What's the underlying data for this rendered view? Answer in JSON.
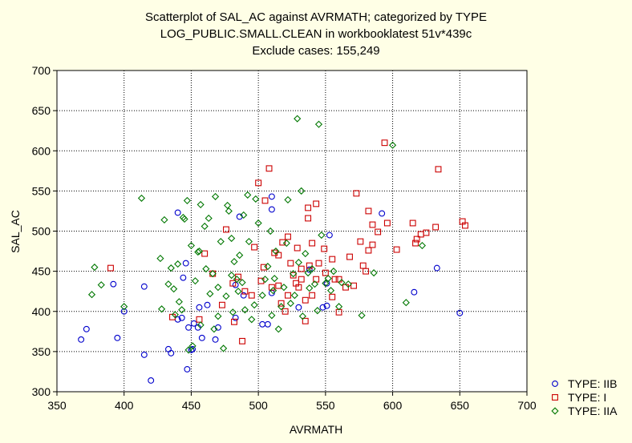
{
  "chart_data": {
    "type": "scatter",
    "title": [
      "Scatterplot of SAL_AC against AVRMATH; categorized by TYPE",
      "LOG_PUBLIC.SMALL.CLEAN in workbooklatest 51v*439c",
      "Exclude cases: 155,249"
    ],
    "xlabel": "AVRMATH",
    "ylabel": "SAL_AC",
    "xlim": [
      350,
      700
    ],
    "ylim": [
      300,
      700
    ],
    "xticks": [
      "350",
      "400",
      "450",
      "500",
      "550",
      "600",
      "650",
      "700"
    ],
    "yticks": [
      "300",
      "350",
      "400",
      "450",
      "500",
      "550",
      "600",
      "650",
      "700"
    ],
    "grid": true,
    "legend_position": "bottom-right",
    "series": [
      {
        "name": "TYPE: IIB",
        "marker": "circle",
        "color": "#0000cc",
        "points": [
          [
            368,
            365
          ],
          [
            372,
            378
          ],
          [
            392,
            434
          ],
          [
            395,
            367
          ],
          [
            400,
            400
          ],
          [
            415,
            431
          ],
          [
            415,
            346
          ],
          [
            420,
            314
          ],
          [
            433,
            353
          ],
          [
            435,
            348
          ],
          [
            440,
            390
          ],
          [
            440,
            523
          ],
          [
            443,
            392
          ],
          [
            444,
            442
          ],
          [
            446,
            460
          ],
          [
            447,
            328
          ],
          [
            448,
            380
          ],
          [
            450,
            352
          ],
          [
            451,
            353
          ],
          [
            452,
            385
          ],
          [
            455,
            380
          ],
          [
            456,
            405
          ],
          [
            458,
            367
          ],
          [
            462,
            408
          ],
          [
            468,
            365
          ],
          [
            470,
            380
          ],
          [
            483,
            392
          ],
          [
            483,
            433
          ],
          [
            486,
            518
          ],
          [
            489,
            420
          ],
          [
            503,
            384
          ],
          [
            507,
            384
          ],
          [
            510,
            543
          ],
          [
            510,
            527
          ],
          [
            510,
            423
          ],
          [
            530,
            405
          ],
          [
            538,
            452
          ],
          [
            548,
            405
          ],
          [
            551,
            407
          ],
          [
            551,
            435
          ],
          [
            553,
            495
          ],
          [
            592,
            522
          ],
          [
            616,
            424
          ],
          [
            633,
            454
          ],
          [
            650,
            398
          ]
        ]
      },
      {
        "name": "TYPE: I",
        "marker": "square",
        "color": "#cc0000",
        "points": [
          [
            390,
            454
          ],
          [
            436,
            393
          ],
          [
            456,
            390
          ],
          [
            460,
            472
          ],
          [
            466,
            447
          ],
          [
            473,
            408
          ],
          [
            476,
            502
          ],
          [
            481,
            435
          ],
          [
            482,
            387
          ],
          [
            485,
            443
          ],
          [
            488,
            363
          ],
          [
            490,
            425
          ],
          [
            495,
            420
          ],
          [
            497,
            480
          ],
          [
            500,
            560
          ],
          [
            502,
            438
          ],
          [
            504,
            455
          ],
          [
            505,
            538
          ],
          [
            508,
            578
          ],
          [
            510,
            430
          ],
          [
            512,
            473
          ],
          [
            515,
            470
          ],
          [
            515,
            432
          ],
          [
            517,
            410
          ],
          [
            518,
            486
          ],
          [
            520,
            400
          ],
          [
            522,
            420
          ],
          [
            522,
            493
          ],
          [
            524,
            460
          ],
          [
            526,
            445
          ],
          [
            528,
            435
          ],
          [
            529,
            479
          ],
          [
            530,
            430
          ],
          [
            532,
            440
          ],
          [
            532,
            453
          ],
          [
            535,
            388
          ],
          [
            535,
            414
          ],
          [
            537,
            529
          ],
          [
            537,
            516
          ],
          [
            538,
            457
          ],
          [
            540,
            420
          ],
          [
            540,
            485
          ],
          [
            543,
            534
          ],
          [
            543,
            440
          ],
          [
            545,
            460
          ],
          [
            549,
            478
          ],
          [
            550,
            448
          ],
          [
            555,
            465
          ],
          [
            555,
            418
          ],
          [
            557,
            440
          ],
          [
            560,
            399
          ],
          [
            560,
            440
          ],
          [
            565,
            430
          ],
          [
            568,
            468
          ],
          [
            571,
            432
          ],
          [
            573,
            547
          ],
          [
            576,
            487
          ],
          [
            578,
            457
          ],
          [
            580,
            450
          ],
          [
            582,
            525
          ],
          [
            582,
            476
          ],
          [
            585,
            483
          ],
          [
            585,
            508
          ],
          [
            589,
            499
          ],
          [
            594,
            610
          ],
          [
            596,
            510
          ],
          [
            603,
            477
          ],
          [
            615,
            510
          ],
          [
            617,
            485
          ],
          [
            618,
            490
          ],
          [
            621,
            496
          ],
          [
            625,
            498
          ],
          [
            632,
            505
          ],
          [
            634,
            577
          ],
          [
            652,
            512
          ],
          [
            654,
            507
          ]
        ]
      },
      {
        "name": "TYPE: IIA",
        "marker": "diamond",
        "color": "#007700",
        "points": [
          [
            376,
            421
          ],
          [
            378,
            455
          ],
          [
            383,
            433
          ],
          [
            400,
            406
          ],
          [
            413,
            541
          ],
          [
            427,
            466
          ],
          [
            428,
            403
          ],
          [
            430,
            514
          ],
          [
            433,
            434
          ],
          [
            435,
            454
          ],
          [
            437,
            428
          ],
          [
            438,
            396
          ],
          [
            440,
            459
          ],
          [
            441,
            412
          ],
          [
            443,
            402
          ],
          [
            444,
            517
          ],
          [
            445,
            515
          ],
          [
            447,
            538
          ],
          [
            448,
            352
          ],
          [
            450,
            482
          ],
          [
            451,
            357
          ],
          [
            453,
            438
          ],
          [
            455,
            474
          ],
          [
            456,
            475
          ],
          [
            457,
            383
          ],
          [
            457,
            533
          ],
          [
            460,
            506
          ],
          [
            461,
            453
          ],
          [
            463,
            516
          ],
          [
            464,
            422
          ],
          [
            466,
            447
          ],
          [
            467,
            378
          ],
          [
            468,
            543
          ],
          [
            470,
            394
          ],
          [
            470,
            430
          ],
          [
            472,
            487
          ],
          [
            474,
            354
          ],
          [
            476,
            419
          ],
          [
            477,
            532
          ],
          [
            478,
            525
          ],
          [
            480,
            445
          ],
          [
            480,
            491
          ],
          [
            481,
            399
          ],
          [
            482,
            462
          ],
          [
            484,
            440
          ],
          [
            485,
            425
          ],
          [
            486,
            470
          ],
          [
            488,
            436
          ],
          [
            489,
            520
          ],
          [
            490,
            402
          ],
          [
            492,
            545
          ],
          [
            493,
            487
          ],
          [
            495,
            390
          ],
          [
            497,
            408
          ],
          [
            498,
            540
          ],
          [
            500,
            510
          ],
          [
            503,
            420
          ],
          [
            505,
            440
          ],
          [
            507,
            456
          ],
          [
            509,
            500
          ],
          [
            510,
            395
          ],
          [
            511,
            426
          ],
          [
            512,
            441
          ],
          [
            513,
            475
          ],
          [
            515,
            378
          ],
          [
            517,
            406
          ],
          [
            519,
            430
          ],
          [
            521,
            485
          ],
          [
            522,
            539
          ],
          [
            524,
            410
          ],
          [
            526,
            447
          ],
          [
            527,
            420
          ],
          [
            529,
            640
          ],
          [
            530,
            461
          ],
          [
            532,
            550
          ],
          [
            533,
            394
          ],
          [
            535,
            472
          ],
          [
            537,
            448
          ],
          [
            538,
            429
          ],
          [
            540,
            453
          ],
          [
            542,
            434
          ],
          [
            544,
            401
          ],
          [
            545,
            633
          ],
          [
            547,
            495
          ],
          [
            550,
            435
          ],
          [
            552,
            441
          ],
          [
            554,
            426
          ],
          [
            556,
            450
          ],
          [
            560,
            406
          ],
          [
            562,
            436
          ],
          [
            567,
            434
          ],
          [
            577,
            395
          ],
          [
            586,
            448
          ],
          [
            600,
            607
          ],
          [
            610,
            411
          ],
          [
            622,
            482
          ]
        ]
      }
    ]
  }
}
